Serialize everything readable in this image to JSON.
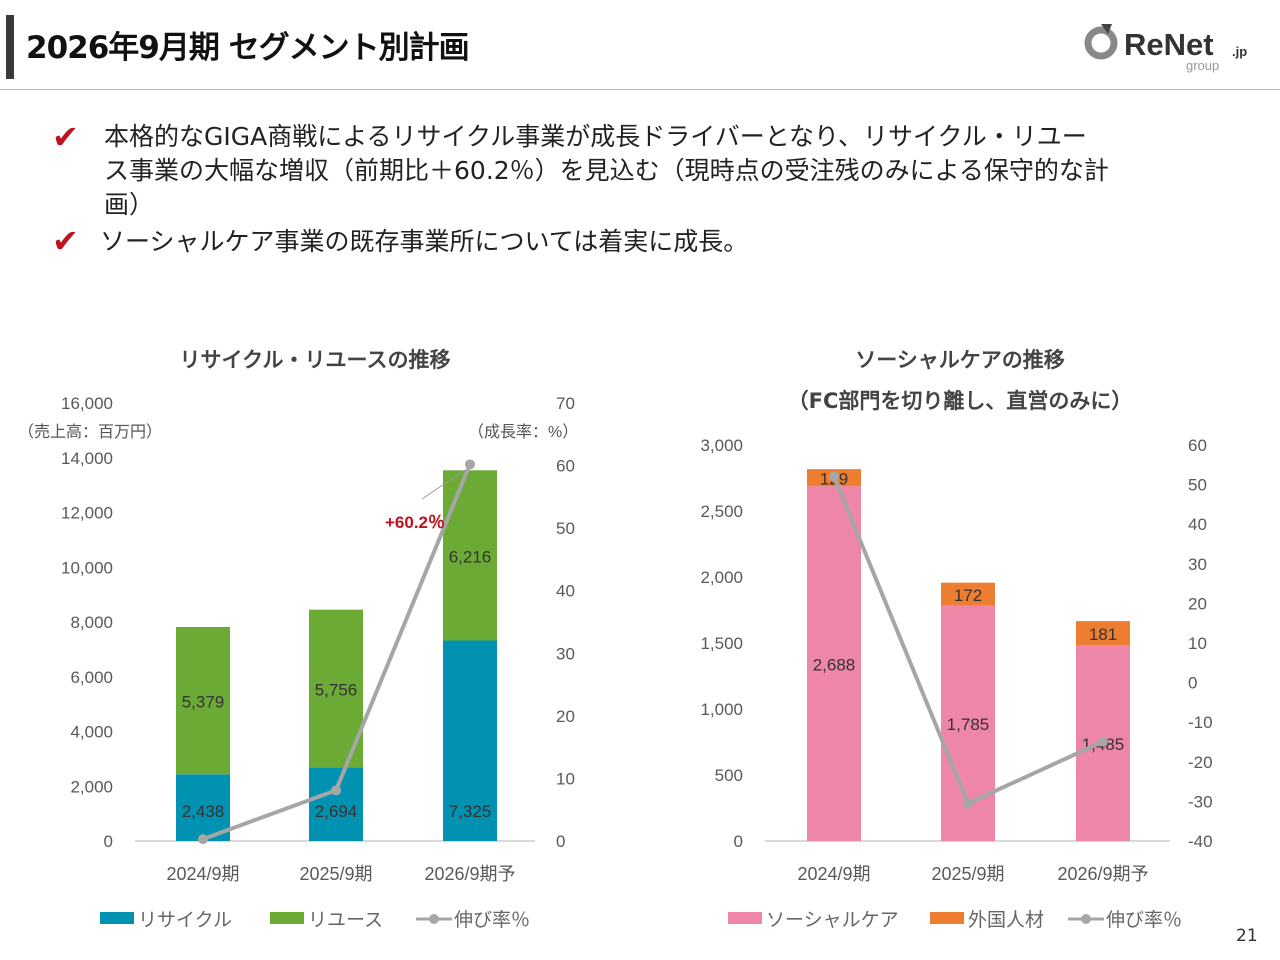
{
  "header": {
    "title": "2026年9月期 セグメント別計画",
    "logo_text": "ReNet",
    "logo_suffix": ".jp",
    "logo_sub": "group"
  },
  "bullets": [
    {
      "line1": "本格的なGIGA商戦によるリサイクル事業が成長ドライバーとなり、リサイクル・リユー",
      "line2": "ス事業の大幅な増収（前期比＋60.2％）を見込む（現時点の受注残のみによる保守的な計",
      "line3": "画）"
    },
    {
      "line1": "ソーシャルケア事業の既存事業所については着実に成長。"
    }
  ],
  "page_number": "21",
  "colors": {
    "recycle": "#0092b0",
    "reuse": "#6aaa35",
    "socialcare": "#ee86a8",
    "foreign": "#ed7d31",
    "growth": "#a6a6a6",
    "accent": "#c0121e"
  },
  "chart_data": [
    {
      "type": "bar",
      "stacked": true,
      "title": "リサイクル・リユースの推移",
      "categories": [
        "2024/9期",
        "2025/9期",
        "2026/9期予"
      ],
      "series": [
        {
          "name": "リサイクル",
          "values": [
            2438,
            2694,
            7325
          ]
        },
        {
          "name": "リユース",
          "values": [
            5379,
            5756,
            6216
          ]
        }
      ],
      "line": {
        "name": "伸び率％",
        "values": [
          0.3,
          8.1,
          60.2
        ],
        "axis": "right"
      },
      "ylabel": "（売上高：百万円）",
      "y2label": "（成長率：%）",
      "ylim": [
        0,
        16000
      ],
      "yticks": [
        "0",
        "2,000",
        "4,000",
        "6,000",
        "8,000",
        "10,000",
        "12,000",
        "14,000",
        "16,000"
      ],
      "y2lim": [
        0,
        70
      ],
      "y2ticks": [
        "0",
        "10",
        "20",
        "30",
        "40",
        "50",
        "60",
        "70"
      ],
      "data_labels": {
        "recycle": [
          "2,438",
          "2,694",
          "7,325"
        ],
        "reuse": [
          "5,379",
          "5,756",
          "6,216"
        ]
      },
      "annotation": "+60.2％",
      "legend": "bottom",
      "grid": false
    },
    {
      "type": "bar",
      "stacked": true,
      "title": "ソーシャルケアの推移",
      "subtitle": "（FC部門を切り離し、直営のみに）",
      "categories": [
        "2024/9期",
        "2025/9期",
        "2026/9期予"
      ],
      "series": [
        {
          "name": "ソーシャルケア",
          "values": [
            2688,
            1785,
            1485
          ]
        },
        {
          "name": "外国人材",
          "values": [
            129,
            172,
            181
          ]
        }
      ],
      "line": {
        "name": "伸び率％",
        "values": [
          52,
          -30.5,
          -14.9
        ],
        "axis": "right"
      },
      "ylim": [
        0,
        3000
      ],
      "yticks": [
        "0",
        "500",
        "1,000",
        "1,500",
        "2,000",
        "2,500",
        "3,000"
      ],
      "y2lim": [
        -40,
        60
      ],
      "y2ticks": [
        "-40",
        "-30",
        "-20",
        "-10",
        "0",
        "10",
        "20",
        "30",
        "40",
        "50",
        "60"
      ],
      "data_labels": {
        "socialcare": [
          "2,688",
          "1,785",
          "1,485"
        ],
        "foreign": [
          "129",
          "172",
          "181"
        ]
      },
      "legend": "bottom",
      "grid": false
    }
  ]
}
